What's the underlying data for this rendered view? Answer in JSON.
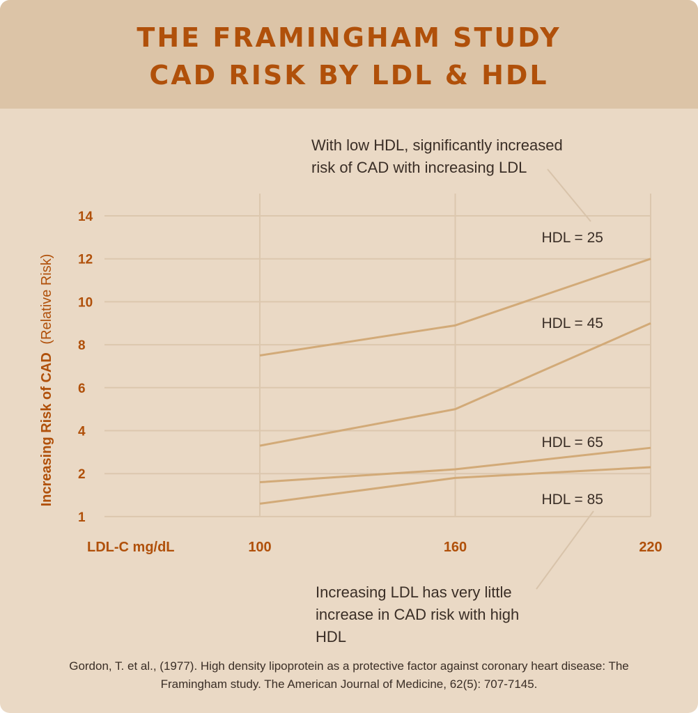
{
  "header": {
    "title_line_1": "THE FRAMINGHAM STUDY",
    "title_line_2": "CAD RISK BY LDL & HDL"
  },
  "colors": {
    "background": "#ead9c5",
    "header_background": "#dcc4a7",
    "title": "#b0500a",
    "axis_text": "#b0500a",
    "series_line": "#d2aa78",
    "gridline": "#dcc7ae",
    "body_text": "#3a2e26"
  },
  "chart_data": {
    "type": "line",
    "x": [
      100,
      160,
      220
    ],
    "x_tick_labels": [
      "100",
      "160",
      "220"
    ],
    "xlabel": "LDL-C mg/dL",
    "ylabel_bold": "Increasing Risk of CAD",
    "ylabel_normal": "(Relative Risk)",
    "y_tick_labels": [
      "1",
      "2",
      "4",
      "6",
      "8",
      "10",
      "12",
      "14"
    ],
    "y_tick_values": [
      1,
      2,
      4,
      6,
      8,
      10,
      12,
      14
    ],
    "grid": true,
    "series": [
      {
        "name": "HDL = 25",
        "values": [
          7.5,
          8.9,
          12
        ]
      },
      {
        "name": "HDL = 45",
        "values": [
          3.3,
          5,
          9
        ]
      },
      {
        "name": "HDL = 65",
        "values": [
          1.8,
          2.2,
          3.2
        ]
      },
      {
        "name": "HDL = 85",
        "values": [
          1.3,
          1.9,
          2.3
        ]
      }
    ]
  },
  "annotations": {
    "top_note": "With low HDL, significantly increased risk of CAD with increasing LDL",
    "bottom_note": "Increasing LDL has very little increase in CAD risk with high HDL"
  },
  "citation": "Gordon, T. et al., (1977). High density lipoprotein as a protective factor against coronary heart disease: The Framingham study. The American Journal of Medicine, 62(5): 707-7145."
}
